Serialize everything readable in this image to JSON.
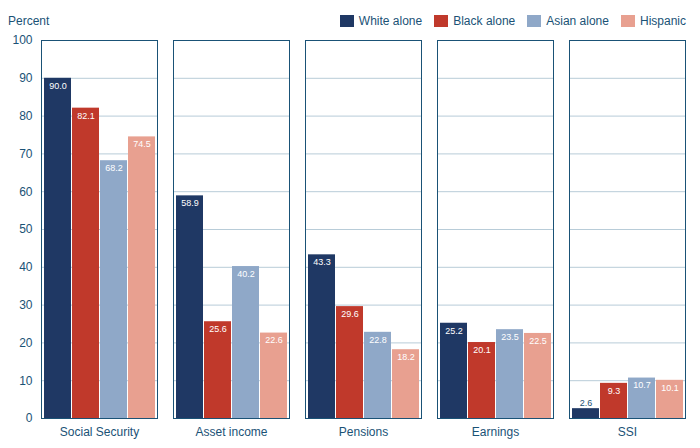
{
  "chart_data": {
    "type": "bar",
    "ylabel": "Percent",
    "categories": [
      "Social Security",
      "Asset income",
      "Pensions",
      "Earnings",
      "SSI"
    ],
    "series": [
      {
        "name": "White alone",
        "color": "#1f3864",
        "values": [
          90.0,
          58.9,
          43.3,
          25.2,
          2.6
        ],
        "value_labels": [
          "90.0",
          "58.9",
          "43.3",
          "25.2",
          "2.6"
        ]
      },
      {
        "name": "Black alone",
        "color": "#c0392b",
        "values": [
          82.1,
          25.6,
          29.6,
          20.1,
          9.3
        ],
        "value_labels": [
          "82.1",
          "25.6",
          "29.6",
          "20.1",
          "9.3"
        ]
      },
      {
        "name": "Asian alone",
        "color": "#8fa8c8",
        "values": [
          68.2,
          40.2,
          22.8,
          23.5,
          10.7
        ],
        "value_labels": [
          "68.2",
          "40.2",
          "22.8",
          "23.5",
          "10.7"
        ]
      },
      {
        "name": "Hispanic",
        "color": "#e8a090",
        "values": [
          74.5,
          22.6,
          18.2,
          22.5,
          10.1
        ],
        "value_labels": [
          "74.5",
          "22.6",
          "18.2",
          "22.5",
          "10.1"
        ]
      }
    ],
    "ylim": [
      0,
      100
    ],
    "yticks": [
      0,
      10,
      20,
      30,
      40,
      50,
      60,
      70,
      80,
      90,
      100
    ],
    "grid": true,
    "legend": "upper right",
    "data_labels": true
  }
}
